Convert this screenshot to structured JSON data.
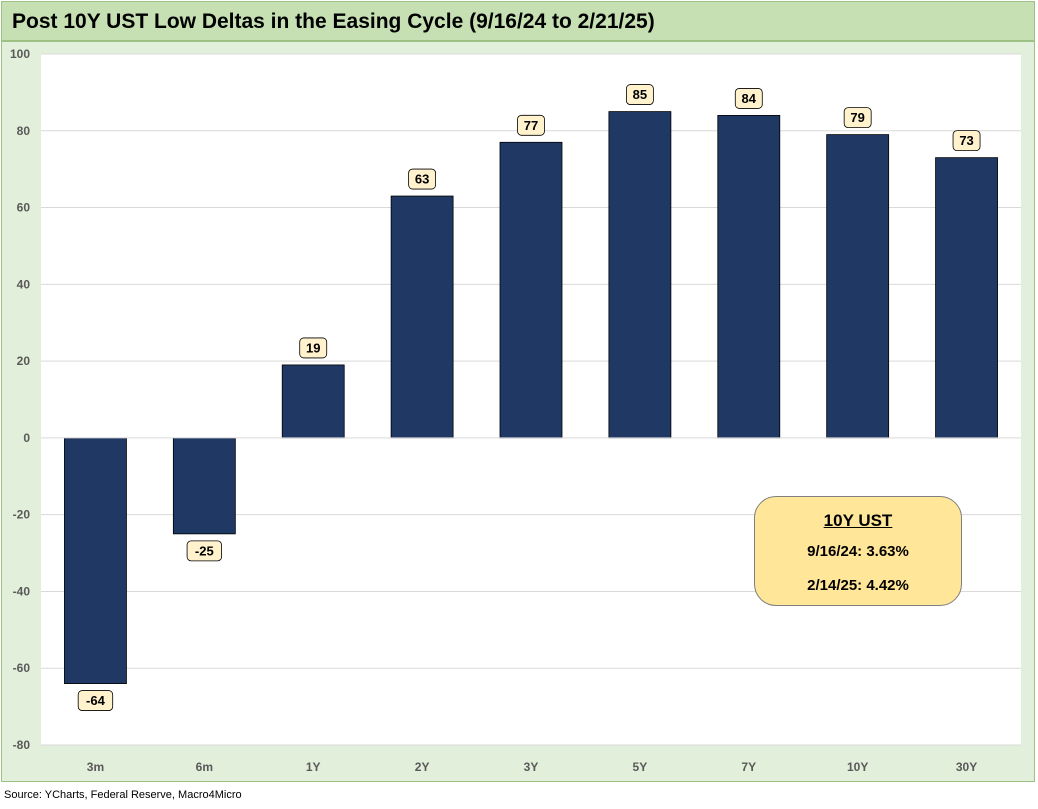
{
  "chart_data": {
    "type": "bar",
    "title": "Post 10Y UST Low Deltas in the Easing Cycle (9/16/24 to 2/21/25)",
    "categories": [
      "3m",
      "6m",
      "1Y",
      "2Y",
      "3Y",
      "5Y",
      "7Y",
      "10Y",
      "30Y"
    ],
    "values": [
      -64,
      -25,
      19,
      63,
      77,
      85,
      84,
      79,
      73
    ],
    "data_labels": [
      "-64",
      "-25",
      "19",
      "63",
      "77",
      "85",
      "84",
      "79",
      "73"
    ],
    "ylim": [
      -80,
      100
    ],
    "yticks": [
      -80,
      -60,
      -40,
      -20,
      0,
      20,
      40,
      60,
      80,
      100
    ],
    "ytick_labels": [
      "-80",
      "-60",
      "-40",
      "-20",
      "0",
      "20",
      "40",
      "60",
      "80",
      "100"
    ],
    "xlabel": "",
    "ylabel": "",
    "grid": true,
    "bar_color": "#1f3864",
    "label_fill": "#fff2cc",
    "plot_background": "#ffffff",
    "chart_background": "#e2efda",
    "title_background": "#c6e0b4"
  },
  "annotation": {
    "title": "10Y UST",
    "line1": "9/16/24: 3.63%",
    "line2": "2/14/25: 4.42%",
    "fill": "#ffe699"
  },
  "source": "Source: YCharts, Federal Reserve, Macro4Micro"
}
